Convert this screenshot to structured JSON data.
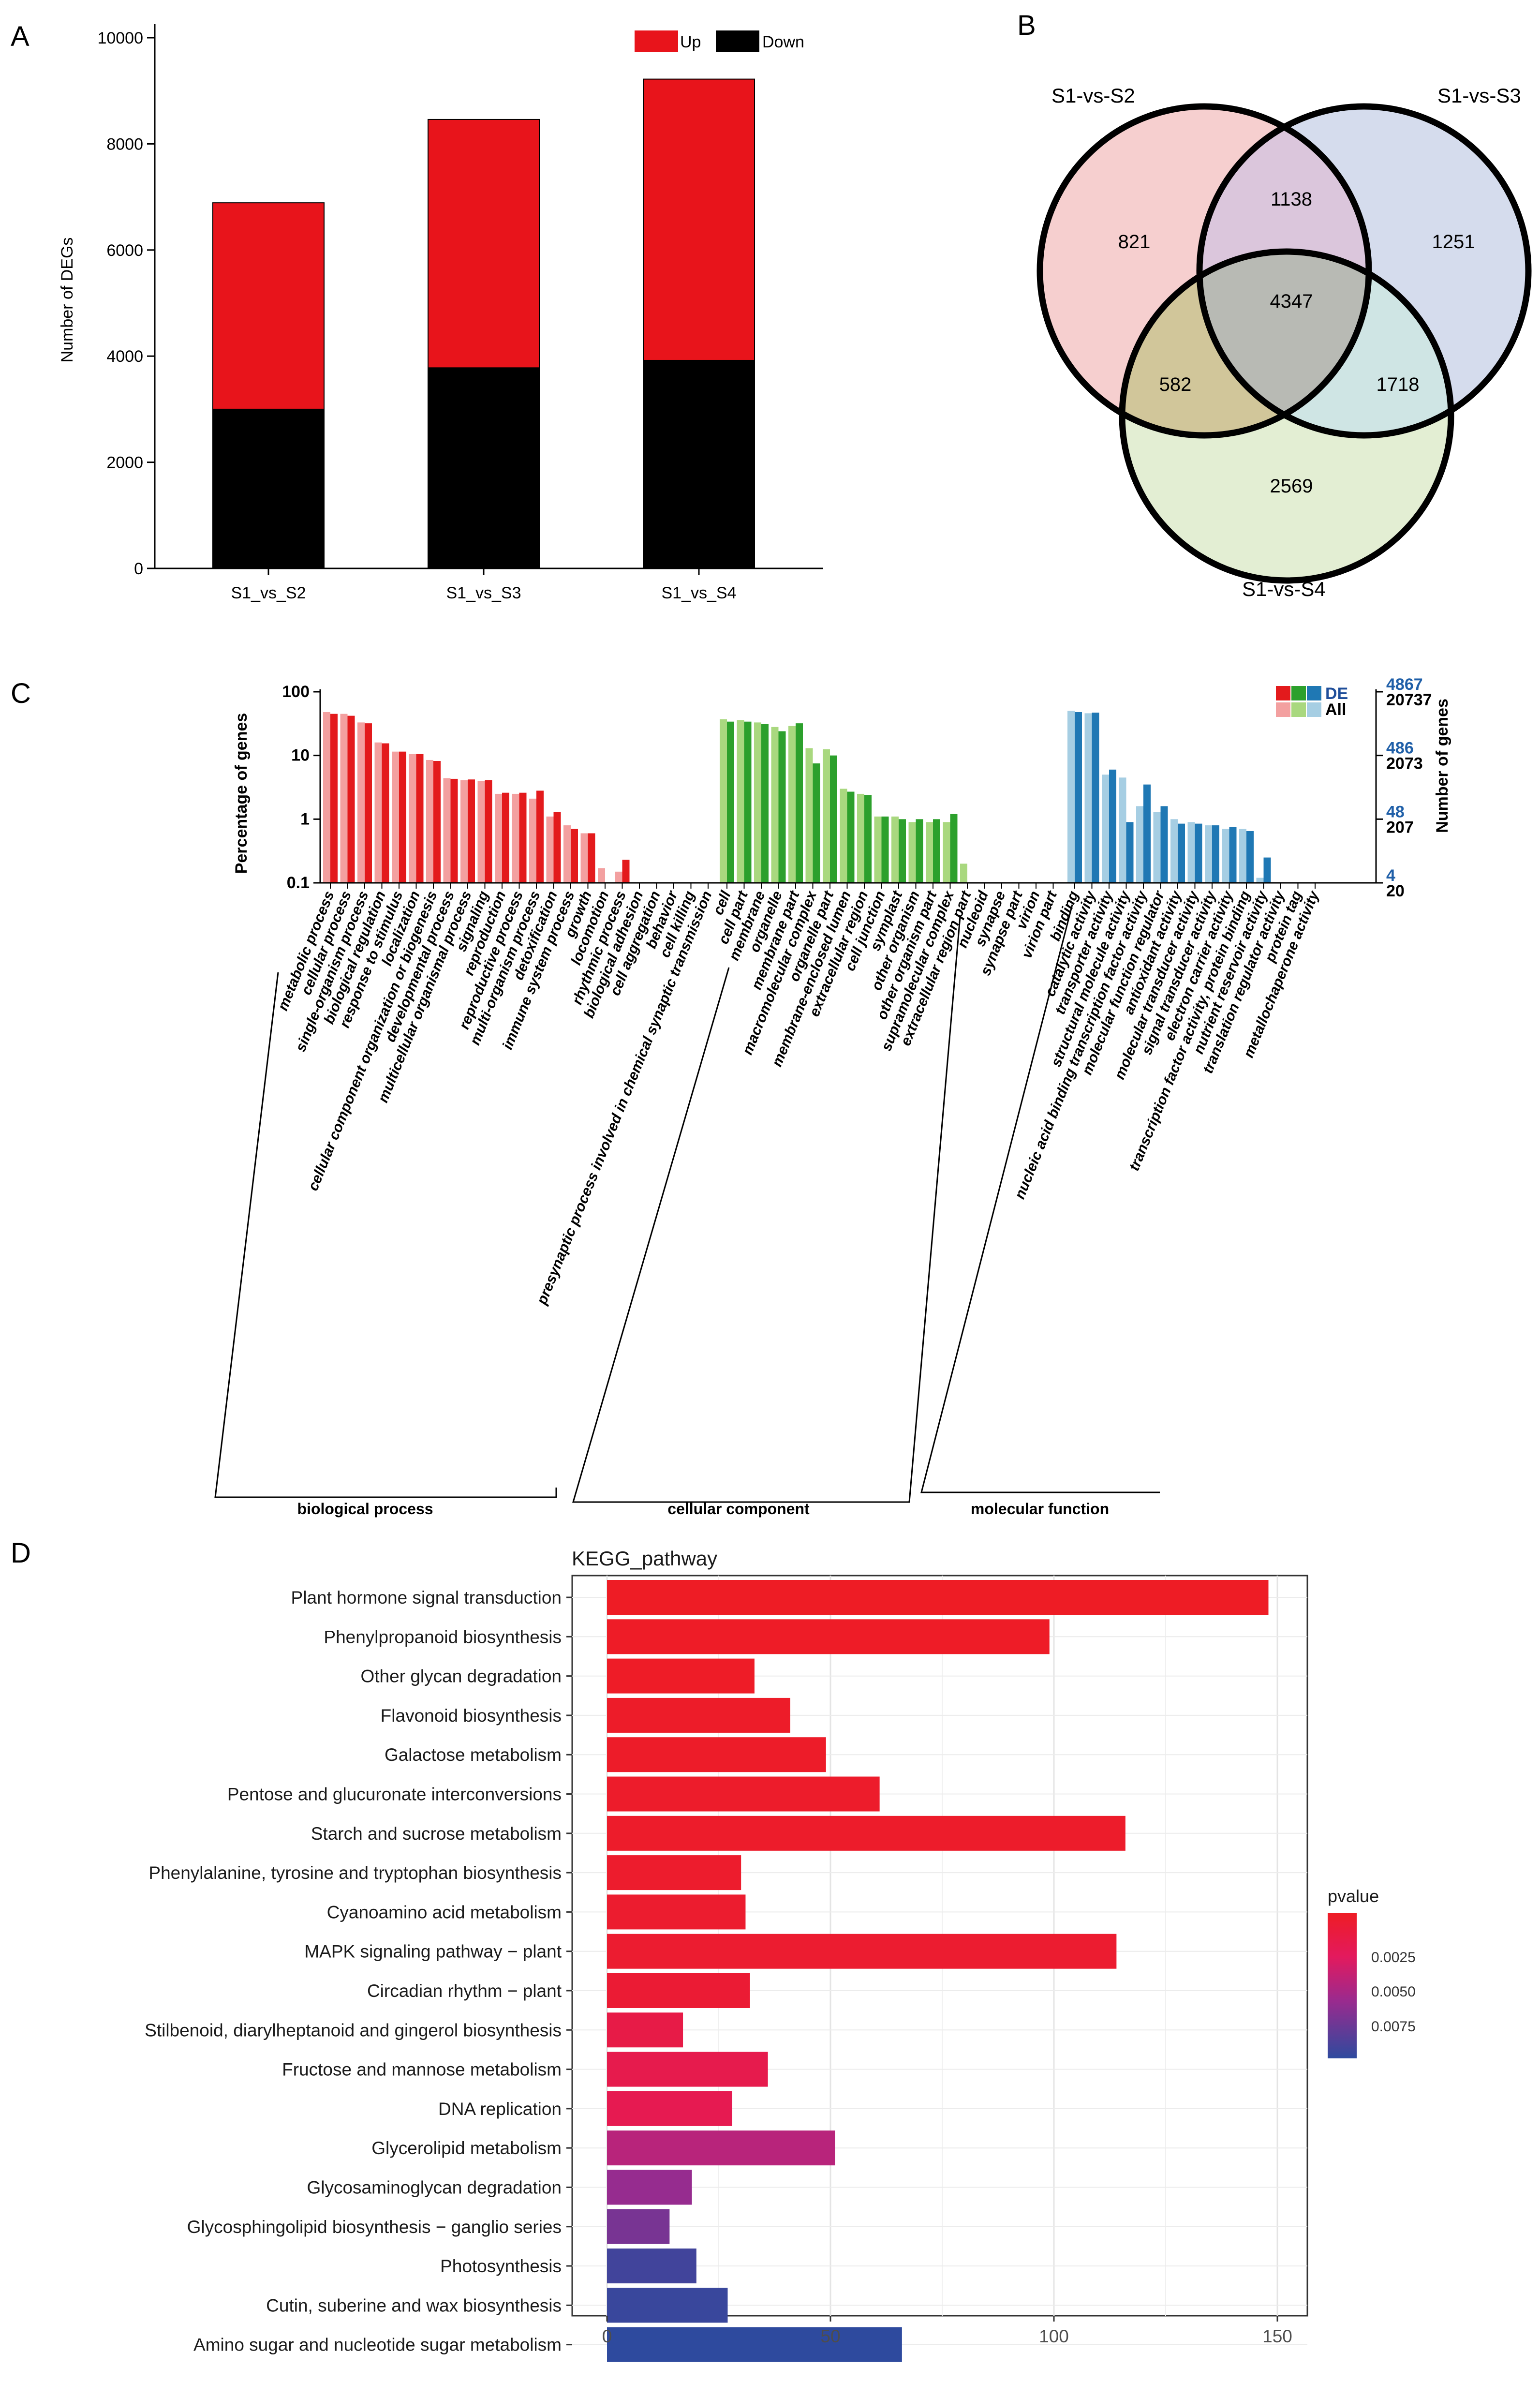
{
  "panels": {
    "A": {
      "label": "A",
      "chart_data": {
        "type": "bar",
        "stacked": true,
        "categories": [
          "S1_vs_S2",
          "S1_vs_S3",
          "S1_vs_S4"
        ],
        "series": [
          {
            "name": "Down",
            "color": "#000000",
            "values": [
              3000,
              3780,
              3920
            ]
          },
          {
            "name": "Up",
            "color": "#e8141b",
            "values": [
              3890,
              4680,
              5300
            ]
          }
        ],
        "ylabel": "Number of DEGs",
        "ylim": [
          0,
          10000
        ],
        "yticks": [
          0,
          2000,
          4000,
          6000,
          8000,
          10000
        ],
        "legend": "top-right"
      }
    },
    "B": {
      "label": "B",
      "chart_data": {
        "type": "venn",
        "sets": [
          {
            "name": "S1-vs-S2",
            "color": "#f6cfcf"
          },
          {
            "name": "S1-vs-S3",
            "color": "#d5dced"
          },
          {
            "name": "S1-vs-S4",
            "color": "#e3eed3"
          }
        ],
        "regions": {
          "S2_only": 821,
          "S3_only": 1251,
          "S4_only": 2569,
          "S2_S3": 1138,
          "S2_S4": 582,
          "S3_S4": 1718,
          "S2_S3_S4": 4347
        },
        "region_colors": {
          "S2_S3": "#dbc6dc",
          "S2_S4": "#d1c69a",
          "S3_S4": "#cfe5e4",
          "S2_S3_S4": "#b8bab4"
        }
      }
    },
    "C": {
      "label": "C",
      "chart_data": {
        "type": "bar",
        "yscale": "log",
        "ylabel": "Percentage of genes",
        "ylabel2": "Number of genes",
        "yticks": [
          "100",
          "10",
          "1",
          "0.1"
        ],
        "yticks2_de": [
          "4867",
          "486",
          "48",
          "4"
        ],
        "yticks2_all": [
          "20737",
          "2073",
          "207",
          "20"
        ],
        "legend": {
          "de": "DE",
          "all": "All"
        },
        "groups": [
          {
            "name": "biological process",
            "color_de": "#e31a1c",
            "color_all": "#f3a0a0",
            "terms": [
              "metabolic process",
              "cellular process",
              "single-organism process",
              "biological regulation",
              "response to stimulus",
              "localization",
              "cellular component organization or biogenesis",
              "developmental process",
              "multicellular organismal process",
              "signaling",
              "reproduction",
              "reproductive process",
              "multi-organism process",
              "detoxification",
              "immune system process",
              "growth",
              "locomotion",
              "rhythmic process",
              "biological adhesion",
              "cell aggregation",
              "behavior",
              "cell killing",
              "presynaptic process involved in chemical synaptic transmission"
            ],
            "all": [
              48,
              45,
              33,
              16,
              11.5,
              10.5,
              8.5,
              4.4,
              4.1,
              4.0,
              2.5,
              2.5,
              2.1,
              1.1,
              0.8,
              0.6,
              0.17,
              0.15,
              null,
              null,
              null,
              null,
              null
            ],
            "de": [
              45,
              42,
              32,
              15.5,
              11.5,
              10.5,
              8.2,
              4.3,
              4.2,
              4.1,
              2.6,
              2.6,
              2.8,
              1.3,
              0.7,
              0.6,
              null,
              0.23,
              null,
              null,
              null,
              null,
              null
            ]
          },
          {
            "name": "cellular component",
            "color_de": "#2ca02c",
            "color_all": "#a9d87f",
            "terms": [
              "cell",
              "cell part",
              "membrane",
              "organelle",
              "membrane part",
              "macromolecular complex",
              "organelle part",
              "membrane-enclosed lumen",
              "extracellular region",
              "cell junction",
              "symplast",
              "other organism",
              "other organism part",
              "supramolecular complex",
              "extracellular region part",
              "nucleoid",
              "synapse",
              "synapse part",
              "virion",
              "virion part"
            ],
            "all": [
              37,
              36,
              33,
              28,
              29,
              13,
              12.5,
              3.0,
              2.5,
              1.1,
              1.1,
              0.9,
              0.9,
              0.9,
              0.2,
              null,
              null,
              null,
              null,
              null
            ],
            "de": [
              34,
              34,
              31,
              24,
              32,
              7.5,
              10,
              2.7,
              2.4,
              1.1,
              1.0,
              1.0,
              1.0,
              1.2,
              null,
              null,
              null,
              null,
              null,
              null
            ]
          },
          {
            "name": "molecular function",
            "color_de": "#1f78b4",
            "color_all": "#a6cee3",
            "terms": [
              "binding",
              "catalytic activity",
              "transporter activity",
              "structural molecule activity",
              "nucleic acid binding transcription factor activity",
              "molecular function regulator",
              "antioxidant activity",
              "molecular transducer activity",
              "signal transducer activity",
              "electron carrier activity",
              "transcription factor activity, protein binding",
              "nutrient reservoir activity",
              "translation regulator activity",
              "protein tag",
              "metallochaperone activity"
            ],
            "all": [
              50,
              46,
              5,
              4.5,
              1.6,
              1.3,
              1.0,
              0.9,
              0.8,
              0.7,
              0.7,
              0.12,
              null,
              null,
              null
            ],
            "de": [
              48,
              47,
              6,
              0.9,
              3.5,
              1.6,
              0.85,
              0.85,
              0.8,
              0.75,
              0.65,
              0.25,
              null,
              null,
              null
            ]
          }
        ]
      }
    },
    "D": {
      "label": "D",
      "chart_data": {
        "type": "bar",
        "orientation": "horizontal",
        "title": "KEGG_pathway",
        "categories": [
          "Plant hormone signal transduction",
          "Phenylpropanoid biosynthesis",
          "Other glycan degradation",
          "Flavonoid biosynthesis",
          "Galactose metabolism",
          "Pentose and glucuronate interconversions",
          "Starch and sucrose metabolism",
          "Phenylalanine, tyrosine and tryptophan biosynthesis",
          "Cyanoamino acid metabolism",
          "MAPK signaling pathway − plant",
          "Circadian rhythm − plant",
          "Stilbenoid, diarylheptanoid and gingerol biosynthesis",
          "Fructose and mannose metabolism",
          "DNA replication",
          "Glycerolipid metabolism",
          "Glycosaminoglycan degradation",
          "Glycosphingolipid biosynthesis − ganglio series",
          "Photosynthesis",
          "Cutin, suberine and wax biosynthesis",
          "Amino sugar and nucleotide sugar metabolism"
        ],
        "values": [
          148,
          99,
          33,
          41,
          49,
          61,
          116,
          30,
          31,
          114,
          32,
          17,
          36,
          28,
          51,
          19,
          14,
          20,
          27,
          66
        ],
        "pvalues": [
          0.0,
          0.0001,
          0.0001,
          0.0002,
          0.0002,
          0.0003,
          0.0003,
          0.0004,
          0.0005,
          0.0006,
          0.0008,
          0.0018,
          0.0021,
          0.0023,
          0.0048,
          0.0062,
          0.0073,
          0.0093,
          0.0096,
          0.01
        ],
        "xlim": [
          0,
          155
        ],
        "xticks": [
          0,
          50,
          100,
          150
        ],
        "legend": {
          "title": "pvalue",
          "ticks": [
            "0.0025",
            "0.0050",
            "0.0075"
          ],
          "placement": "right"
        }
      }
    }
  }
}
